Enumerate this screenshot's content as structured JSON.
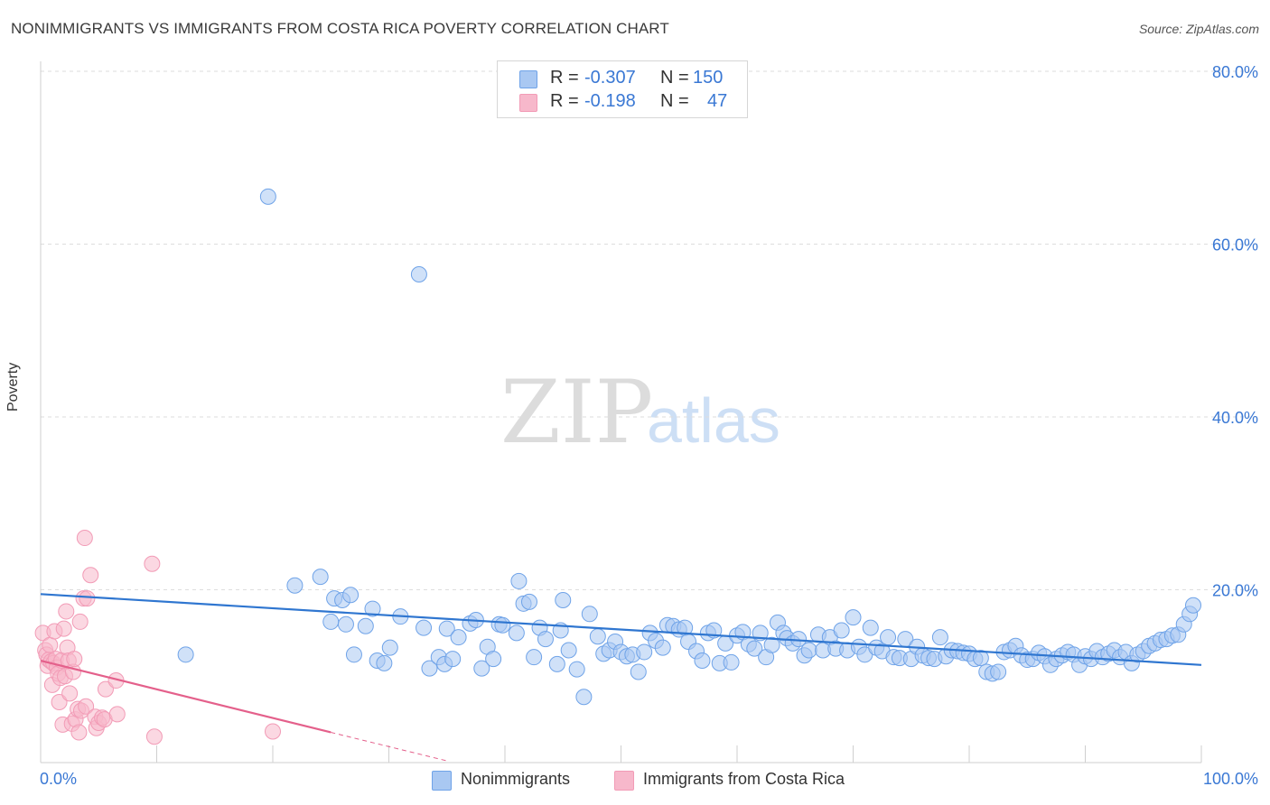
{
  "header": {
    "title": "NONIMMIGRANTS VS IMMIGRANTS FROM COSTA RICA POVERTY CORRELATION CHART",
    "source": "Source: ZipAtlas.com"
  },
  "watermark": {
    "zip": "ZIP",
    "atlas": "atlas"
  },
  "stats": [
    {
      "r_label": "R =",
      "r_value": "-0.307",
      "n_label": "N =",
      "n_value": "150",
      "color": "#a9c8f2"
    },
    {
      "r_label": "R =",
      "r_value": "-0.198",
      "n_label": "N =",
      "n_value": "47",
      "color": "#f7b8cb"
    }
  ],
  "legend": [
    {
      "label": "Nonimmigrants",
      "color": "#a9c8f2"
    },
    {
      "label": "Immigrants from Costa Rica",
      "color": "#f7b8cb"
    }
  ],
  "chart_data": {
    "type": "scatter",
    "title": "NONIMMIGRANTS VS IMMIGRANTS FROM COSTA RICA POVERTY CORRELATION CHART",
    "xlabel": "",
    "ylabel": "Poverty",
    "xlim": [
      0,
      100
    ],
    "ylim": [
      0,
      80
    ],
    "x_tick_labels": [
      "0.0%",
      "100.0%"
    ],
    "y_ticks": [
      20,
      40,
      60,
      80
    ],
    "y_tick_labels": [
      "20.0%",
      "40.0%",
      "60.0%",
      "80.0%"
    ],
    "grid": true,
    "legend_position": "bottom",
    "series": [
      {
        "name": "Nonimmigrants",
        "color": "#6fa3e8",
        "fill": "#a9c8f2",
        "trend_color": "#2f76d0",
        "trend": {
          "x": [
            0,
            100
          ],
          "y": [
            19.5,
            11.3
          ]
        },
        "points": [
          [
            12.5,
            12.5
          ],
          [
            19.6,
            65.5
          ],
          [
            21.9,
            20.5
          ],
          [
            24.1,
            21.5
          ],
          [
            25.0,
            16.3
          ],
          [
            25.3,
            19.0
          ],
          [
            26.0,
            18.8
          ],
          [
            26.3,
            16.0
          ],
          [
            26.7,
            19.4
          ],
          [
            27.0,
            12.5
          ],
          [
            28.0,
            15.8
          ],
          [
            28.6,
            17.8
          ],
          [
            29.0,
            11.8
          ],
          [
            29.6,
            11.5
          ],
          [
            30.1,
            13.3
          ],
          [
            31.0,
            16.9
          ],
          [
            32.6,
            56.5
          ],
          [
            33.0,
            15.6
          ],
          [
            33.5,
            10.9
          ],
          [
            34.3,
            12.2
          ],
          [
            34.8,
            11.4
          ],
          [
            35.0,
            15.5
          ],
          [
            35.5,
            12.0
          ],
          [
            36.0,
            14.5
          ],
          [
            37.0,
            16.1
          ],
          [
            37.5,
            16.5
          ],
          [
            38.0,
            10.9
          ],
          [
            38.5,
            13.4
          ],
          [
            39.0,
            12.0
          ],
          [
            39.5,
            16.0
          ],
          [
            39.8,
            15.9
          ],
          [
            41.0,
            15.0
          ],
          [
            41.2,
            21.0
          ],
          [
            41.6,
            18.4
          ],
          [
            42.1,
            18.6
          ],
          [
            42.5,
            12.2
          ],
          [
            43.0,
            15.6
          ],
          [
            43.5,
            14.3
          ],
          [
            44.5,
            11.4
          ],
          [
            44.8,
            15.3
          ],
          [
            45.0,
            18.8
          ],
          [
            45.5,
            13.0
          ],
          [
            46.2,
            10.8
          ],
          [
            46.8,
            7.6
          ],
          [
            47.3,
            17.2
          ],
          [
            48.0,
            14.6
          ],
          [
            48.5,
            12.6
          ],
          [
            49.0,
            13.0
          ],
          [
            49.5,
            14.0
          ],
          [
            50.0,
            12.8
          ],
          [
            50.5,
            12.3
          ],
          [
            51.0,
            12.5
          ],
          [
            51.5,
            10.5
          ],
          [
            52.0,
            12.8
          ],
          [
            52.5,
            15.0
          ],
          [
            53.0,
            14.1
          ],
          [
            53.6,
            13.3
          ],
          [
            54.0,
            15.9
          ],
          [
            54.5,
            15.8
          ],
          [
            55.0,
            15.4
          ],
          [
            55.5,
            15.6
          ],
          [
            55.8,
            14.0
          ],
          [
            56.5,
            12.9
          ],
          [
            57.0,
            11.8
          ],
          [
            57.5,
            15.0
          ],
          [
            58.0,
            15.3
          ],
          [
            58.5,
            11.5
          ],
          [
            59.0,
            13.8
          ],
          [
            59.5,
            11.6
          ],
          [
            60.0,
            14.7
          ],
          [
            60.5,
            15.1
          ],
          [
            61.0,
            13.7
          ],
          [
            61.5,
            13.2
          ],
          [
            62.0,
            15.0
          ],
          [
            62.5,
            12.2
          ],
          [
            63.0,
            13.6
          ],
          [
            63.5,
            16.2
          ],
          [
            64.0,
            15.0
          ],
          [
            64.3,
            14.4
          ],
          [
            64.8,
            13.8
          ],
          [
            65.3,
            14.3
          ],
          [
            65.8,
            12.4
          ],
          [
            66.2,
            13.0
          ],
          [
            67.0,
            14.8
          ],
          [
            67.4,
            13.0
          ],
          [
            68.0,
            14.5
          ],
          [
            68.5,
            13.2
          ],
          [
            69.0,
            15.3
          ],
          [
            69.5,
            13.0
          ],
          [
            70.0,
            16.8
          ],
          [
            70.5,
            13.4
          ],
          [
            71.0,
            12.5
          ],
          [
            71.5,
            15.6
          ],
          [
            72.0,
            13.3
          ],
          [
            72.5,
            12.9
          ],
          [
            73.0,
            14.5
          ],
          [
            73.5,
            12.2
          ],
          [
            74.0,
            12.1
          ],
          [
            74.5,
            14.3
          ],
          [
            75.0,
            12.0
          ],
          [
            75.5,
            13.4
          ],
          [
            76.0,
            12.4
          ],
          [
            76.5,
            12.1
          ],
          [
            77.0,
            12.0
          ],
          [
            77.5,
            14.5
          ],
          [
            78.0,
            12.3
          ],
          [
            78.5,
            13.0
          ],
          [
            79.0,
            12.9
          ],
          [
            79.5,
            12.7
          ],
          [
            80.0,
            12.6
          ],
          [
            80.5,
            12.0
          ],
          [
            81.0,
            12.1
          ],
          [
            81.5,
            10.5
          ],
          [
            82.0,
            10.3
          ],
          [
            82.5,
            10.5
          ],
          [
            83.0,
            12.8
          ],
          [
            83.5,
            13.0
          ],
          [
            84.0,
            13.5
          ],
          [
            84.5,
            12.4
          ],
          [
            85.0,
            11.9
          ],
          [
            85.5,
            12.0
          ],
          [
            86.0,
            12.7
          ],
          [
            86.5,
            12.3
          ],
          [
            87.0,
            11.3
          ],
          [
            87.5,
            12.0
          ],
          [
            88.0,
            12.4
          ],
          [
            88.5,
            12.8
          ],
          [
            89.0,
            12.5
          ],
          [
            89.5,
            11.3
          ],
          [
            90.0,
            12.3
          ],
          [
            90.5,
            12.0
          ],
          [
            91.0,
            12.9
          ],
          [
            91.5,
            12.2
          ],
          [
            92.0,
            12.6
          ],
          [
            92.5,
            13.0
          ],
          [
            93.0,
            12.2
          ],
          [
            93.5,
            12.8
          ],
          [
            94.0,
            11.5
          ],
          [
            94.5,
            12.5
          ],
          [
            95.0,
            12.9
          ],
          [
            95.5,
            13.5
          ],
          [
            96.0,
            13.8
          ],
          [
            96.5,
            14.2
          ],
          [
            97.0,
            14.3
          ],
          [
            97.5,
            14.7
          ],
          [
            98.0,
            14.8
          ],
          [
            98.5,
            16.0
          ],
          [
            99.0,
            17.2
          ],
          [
            99.3,
            18.2
          ]
        ]
      },
      {
        "name": "Immigrants from Costa Rica",
        "color": "#f29bb6",
        "fill": "#f7b8cb",
        "trend_color": "#e4608b",
        "trend": {
          "x": [
            0,
            25
          ],
          "y": [
            11.8,
            3.5
          ]
        },
        "trend_dashed": {
          "x": [
            25,
            35
          ],
          "y": [
            3.5,
            0.2
          ]
        },
        "points": [
          [
            0.2,
            15.0
          ],
          [
            0.4,
            13.0
          ],
          [
            0.5,
            12.5
          ],
          [
            0.6,
            11.2
          ],
          [
            0.7,
            11.9
          ],
          [
            0.8,
            13.6
          ],
          [
            0.9,
            11.7
          ],
          [
            1.0,
            9.0
          ],
          [
            1.1,
            11.5
          ],
          [
            1.2,
            15.2
          ],
          [
            1.3,
            12.0
          ],
          [
            1.4,
            11.0
          ],
          [
            1.5,
            10.3
          ],
          [
            1.6,
            7.0
          ],
          [
            1.7,
            9.8
          ],
          [
            1.8,
            11.8
          ],
          [
            1.9,
            4.4
          ],
          [
            2.0,
            15.5
          ],
          [
            2.1,
            10.0
          ],
          [
            2.2,
            17.5
          ],
          [
            2.3,
            13.3
          ],
          [
            2.4,
            11.8
          ],
          [
            2.5,
            8.0
          ],
          [
            2.7,
            4.5
          ],
          [
            2.8,
            10.5
          ],
          [
            2.9,
            12.0
          ],
          [
            3.0,
            5.0
          ],
          [
            3.2,
            6.2
          ],
          [
            3.3,
            3.5
          ],
          [
            3.4,
            16.3
          ],
          [
            3.5,
            6.0
          ],
          [
            3.7,
            19.0
          ],
          [
            3.8,
            26.0
          ],
          [
            3.9,
            6.5
          ],
          [
            4.0,
            19.0
          ],
          [
            4.3,
            21.7
          ],
          [
            4.7,
            5.3
          ],
          [
            4.8,
            4.0
          ],
          [
            5.0,
            4.6
          ],
          [
            5.3,
            5.2
          ],
          [
            5.5,
            5.0
          ],
          [
            5.6,
            8.5
          ],
          [
            6.5,
            9.5
          ],
          [
            6.6,
            5.6
          ],
          [
            9.6,
            23.0
          ],
          [
            9.8,
            3.0
          ],
          [
            20.0,
            3.6
          ]
        ]
      }
    ]
  }
}
